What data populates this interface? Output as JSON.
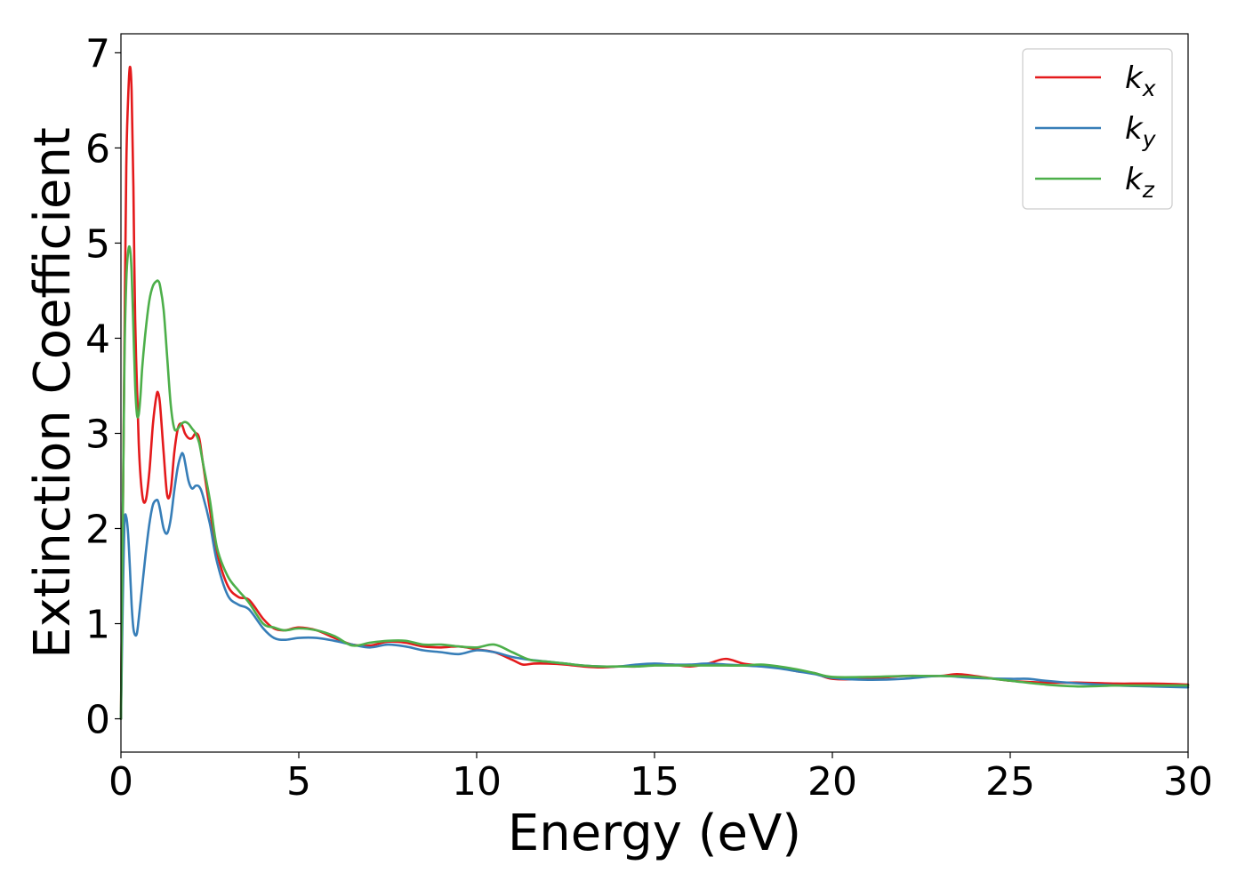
{
  "chart_data": {
    "type": "line",
    "title": "",
    "xlabel": "Energy (eV)",
    "ylabel": "Extinction Coefficient",
    "xlim": [
      0,
      30
    ],
    "ylim": [
      -0.35,
      7.2
    ],
    "xticks": [
      0,
      5,
      10,
      15,
      20,
      25,
      30
    ],
    "xtick_labels": [
      "0",
      "5",
      "10",
      "15",
      "20",
      "25",
      "30"
    ],
    "yticks": [
      0,
      1,
      2,
      3,
      4,
      5,
      6,
      7
    ],
    "ytick_labels": [
      "0",
      "1",
      "2",
      "3",
      "4",
      "5",
      "6",
      "7"
    ],
    "grid": false,
    "legend_position": "top-right",
    "series": [
      {
        "name": "k",
        "subscript": "x",
        "color": "#e41a1c",
        "x": [
          0,
          0.05,
          0.1,
          0.15,
          0.2,
          0.25,
          0.3,
          0.35,
          0.4,
          0.5,
          0.6,
          0.7,
          0.8,
          0.9,
          1.0,
          1.05,
          1.1,
          1.2,
          1.3,
          1.4,
          1.5,
          1.6,
          1.7,
          1.8,
          1.9,
          2.0,
          2.1,
          2.2,
          2.3,
          2.5,
          2.7,
          3.0,
          3.3,
          3.6,
          4.0,
          4.3,
          4.6,
          5.0,
          5.5,
          6.0,
          6.5,
          7.0,
          7.5,
          8.0,
          8.5,
          9.0,
          9.5,
          10.0,
          10.5,
          11.0,
          11.3,
          11.6,
          12.0,
          12.5,
          13.0,
          13.5,
          14.0,
          14.5,
          15.0,
          15.5,
          16.0,
          16.5,
          17.0,
          17.5,
          18.0,
          18.5,
          19.0,
          19.5,
          20.0,
          21.0,
          22.0,
          23.0,
          23.5,
          24.0,
          25.0,
          26.0,
          27.0,
          28.0,
          29.0,
          30.0
        ],
        "y": [
          0.0,
          2.0,
          4.0,
          5.8,
          6.5,
          6.85,
          6.6,
          5.6,
          4.2,
          2.9,
          2.35,
          2.3,
          2.6,
          3.1,
          3.4,
          3.42,
          3.3,
          2.8,
          2.35,
          2.4,
          2.8,
          3.05,
          3.1,
          3.0,
          2.95,
          2.95,
          3.0,
          2.95,
          2.7,
          2.2,
          1.75,
          1.4,
          1.28,
          1.25,
          1.05,
          0.95,
          0.93,
          0.96,
          0.93,
          0.85,
          0.78,
          0.77,
          0.81,
          0.8,
          0.76,
          0.75,
          0.76,
          0.73,
          0.7,
          0.62,
          0.57,
          0.58,
          0.58,
          0.57,
          0.55,
          0.54,
          0.55,
          0.55,
          0.57,
          0.57,
          0.55,
          0.58,
          0.63,
          0.58,
          0.56,
          0.54,
          0.5,
          0.48,
          0.42,
          0.42,
          0.45,
          0.45,
          0.47,
          0.45,
          0.4,
          0.38,
          0.38,
          0.37,
          0.37,
          0.36
        ]
      },
      {
        "name": "k",
        "subscript": "y",
        "color": "#377eb8",
        "x": [
          0,
          0.05,
          0.1,
          0.15,
          0.2,
          0.25,
          0.3,
          0.35,
          0.4,
          0.45,
          0.5,
          0.6,
          0.7,
          0.8,
          0.9,
          1.0,
          1.05,
          1.1,
          1.2,
          1.3,
          1.4,
          1.5,
          1.6,
          1.7,
          1.75,
          1.8,
          1.9,
          2.0,
          2.1,
          2.2,
          2.3,
          2.5,
          2.7,
          3.0,
          3.3,
          3.6,
          4.0,
          4.3,
          4.6,
          5.0,
          5.5,
          6.0,
          6.5,
          7.0,
          7.5,
          8.0,
          8.5,
          9.0,
          9.5,
          10.0,
          10.5,
          11.0,
          11.5,
          12.0,
          12.5,
          13.0,
          13.5,
          14.0,
          14.5,
          15.0,
          15.5,
          16.0,
          16.5,
          17.0,
          17.5,
          18.0,
          18.5,
          19.0,
          19.5,
          20.0,
          21.0,
          22.0,
          23.0,
          24.0,
          25.0,
          25.5,
          26.0,
          27.0,
          28.0,
          29.0,
          30.0
        ],
        "y": [
          0.0,
          1.2,
          2.05,
          2.12,
          1.95,
          1.6,
          1.2,
          0.95,
          0.88,
          0.9,
          1.05,
          1.4,
          1.75,
          2.05,
          2.25,
          2.3,
          2.28,
          2.2,
          2.0,
          1.95,
          2.1,
          2.4,
          2.65,
          2.78,
          2.78,
          2.7,
          2.5,
          2.42,
          2.45,
          2.44,
          2.35,
          2.05,
          1.65,
          1.3,
          1.2,
          1.15,
          0.95,
          0.85,
          0.83,
          0.85,
          0.85,
          0.82,
          0.78,
          0.75,
          0.78,
          0.76,
          0.72,
          0.7,
          0.68,
          0.72,
          0.7,
          0.65,
          0.62,
          0.6,
          0.58,
          0.56,
          0.55,
          0.55,
          0.57,
          0.58,
          0.57,
          0.57,
          0.58,
          0.57,
          0.56,
          0.55,
          0.53,
          0.5,
          0.47,
          0.43,
          0.41,
          0.42,
          0.45,
          0.43,
          0.42,
          0.42,
          0.4,
          0.37,
          0.35,
          0.34,
          0.33
        ]
      },
      {
        "name": "k",
        "subscript": "z",
        "color": "#4daf4a",
        "x": [
          0,
          0.05,
          0.1,
          0.15,
          0.2,
          0.25,
          0.3,
          0.35,
          0.4,
          0.45,
          0.5,
          0.55,
          0.6,
          0.7,
          0.8,
          0.9,
          1.0,
          1.05,
          1.1,
          1.2,
          1.3,
          1.4,
          1.5,
          1.6,
          1.7,
          1.8,
          1.9,
          2.0,
          2.1,
          2.2,
          2.3,
          2.5,
          2.7,
          3.0,
          3.3,
          3.6,
          4.0,
          4.3,
          4.6,
          5.0,
          5.5,
          6.0,
          6.5,
          7.0,
          7.5,
          8.0,
          8.5,
          9.0,
          9.5,
          10.0,
          10.5,
          11.0,
          11.5,
          12.0,
          12.5,
          13.0,
          13.5,
          14.0,
          14.5,
          15.0,
          15.5,
          16.0,
          16.5,
          17.0,
          17.5,
          18.0,
          18.5,
          19.0,
          19.5,
          20.0,
          21.0,
          22.0,
          23.0,
          24.0,
          25.0,
          26.0,
          27.0,
          28.0,
          29.0,
          30.0
        ],
        "y": [
          0.0,
          2.0,
          3.8,
          4.6,
          4.9,
          4.95,
          4.7,
          4.1,
          3.5,
          3.2,
          3.2,
          3.4,
          3.7,
          4.1,
          4.4,
          4.55,
          4.6,
          4.6,
          4.55,
          4.3,
          3.8,
          3.3,
          3.05,
          3.05,
          3.1,
          3.12,
          3.1,
          3.05,
          3.0,
          2.9,
          2.7,
          2.3,
          1.8,
          1.5,
          1.35,
          1.22,
          1.0,
          0.96,
          0.93,
          0.95,
          0.93,
          0.87,
          0.77,
          0.8,
          0.82,
          0.82,
          0.78,
          0.78,
          0.76,
          0.75,
          0.78,
          0.7,
          0.62,
          0.6,
          0.58,
          0.56,
          0.55,
          0.55,
          0.55,
          0.56,
          0.56,
          0.56,
          0.56,
          0.56,
          0.56,
          0.57,
          0.55,
          0.52,
          0.48,
          0.44,
          0.44,
          0.45,
          0.45,
          0.44,
          0.4,
          0.36,
          0.34,
          0.35,
          0.35,
          0.35
        ]
      }
    ]
  }
}
